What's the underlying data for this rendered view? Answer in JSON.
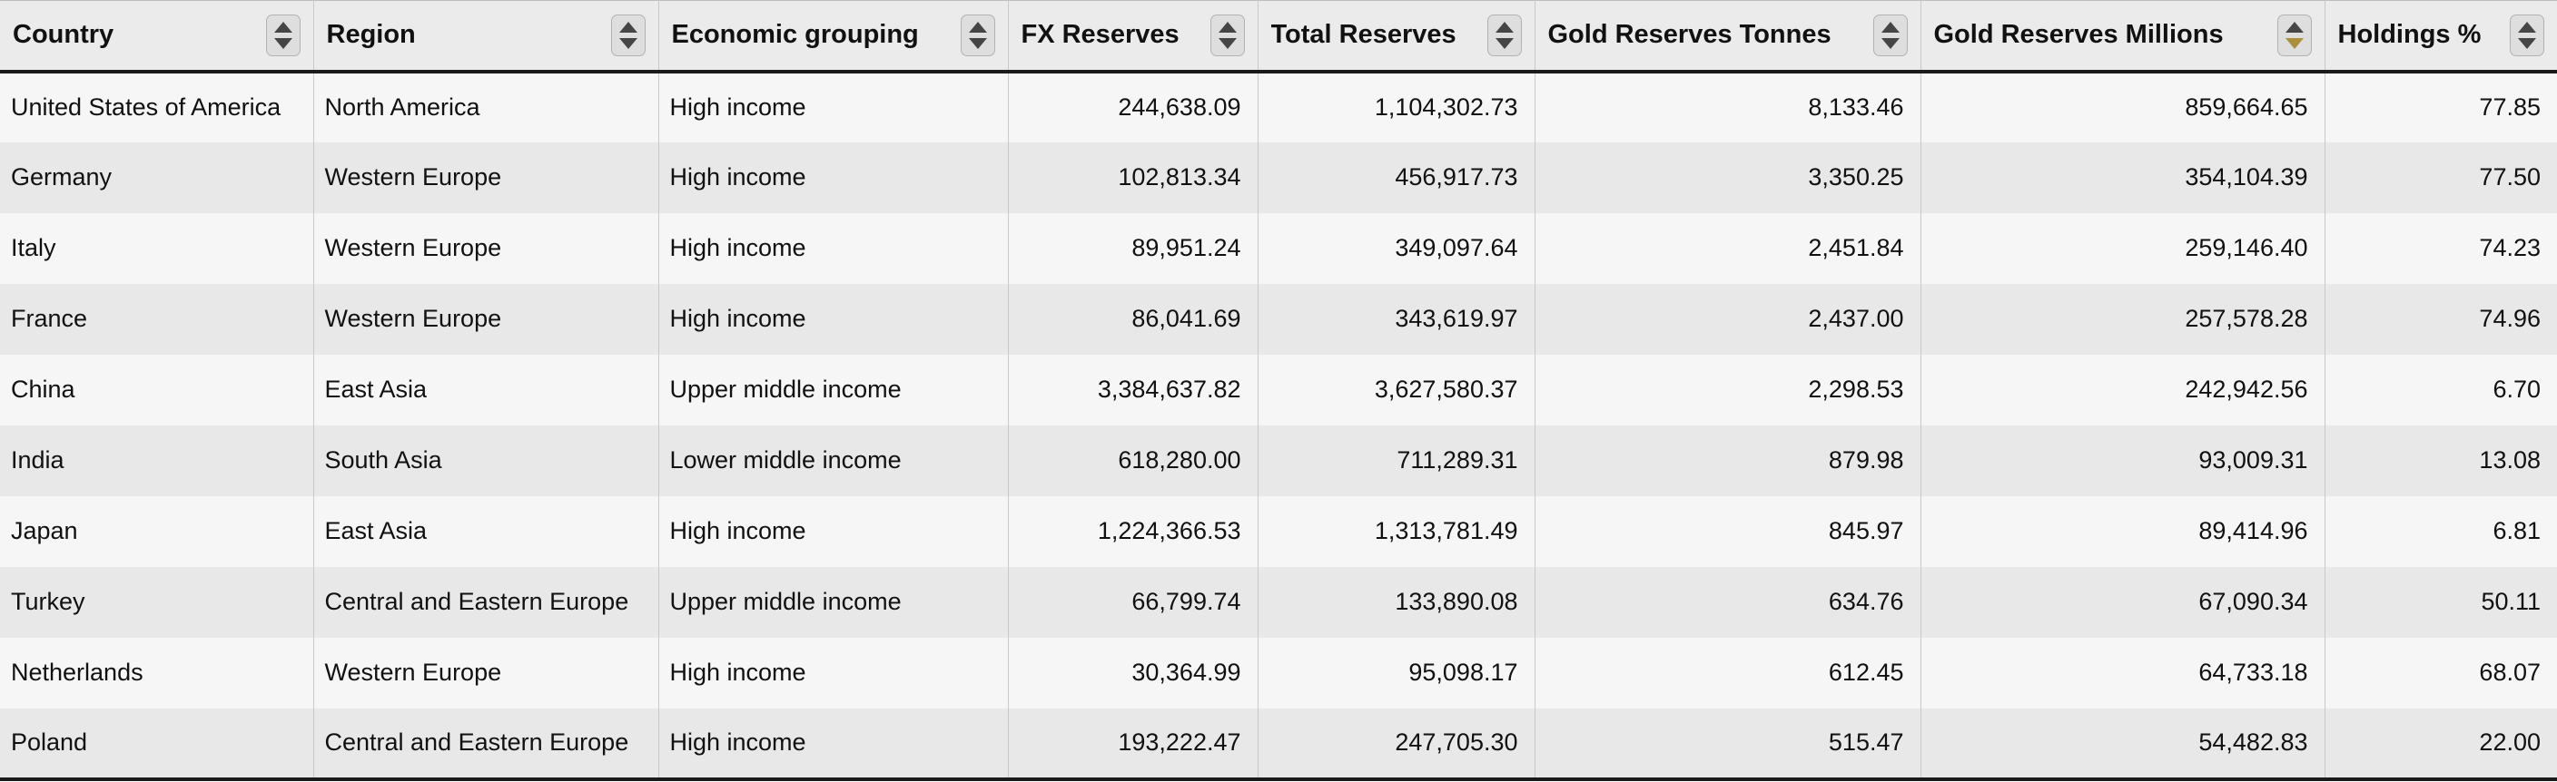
{
  "colors": {
    "header_bg": "#ebebeb",
    "row_odd_bg": "#f6f6f6",
    "row_even_bg": "#e8e8e8",
    "active_sort_arrow": "#a98f3e",
    "border_dark": "#1a1a1a",
    "border_light": "#c8c8c8"
  },
  "table": {
    "columns": [
      {
        "label": "Country",
        "align": "left",
        "sort": null
      },
      {
        "label": "Region",
        "align": "left",
        "sort": null
      },
      {
        "label": "Economic grouping",
        "align": "left",
        "sort": null
      },
      {
        "label": "FX Reserves",
        "align": "right",
        "sort": null
      },
      {
        "label": "Total Reserves",
        "align": "right",
        "sort": null
      },
      {
        "label": "Gold Reserves Tonnes",
        "align": "right",
        "sort": null
      },
      {
        "label": "Gold Reserves Millions",
        "align": "right",
        "sort": "desc"
      },
      {
        "label": "Holdings %",
        "align": "right",
        "sort": null
      }
    ],
    "rows": [
      [
        "United States of America",
        "North America",
        "High income",
        "244,638.09",
        "1,104,302.73",
        "8,133.46",
        "859,664.65",
        "77.85"
      ],
      [
        "Germany",
        "Western Europe",
        "High income",
        "102,813.34",
        "456,917.73",
        "3,350.25",
        "354,104.39",
        "77.50"
      ],
      [
        "Italy",
        "Western Europe",
        "High income",
        "89,951.24",
        "349,097.64",
        "2,451.84",
        "259,146.40",
        "74.23"
      ],
      [
        "France",
        "Western Europe",
        "High income",
        "86,041.69",
        "343,619.97",
        "2,437.00",
        "257,578.28",
        "74.96"
      ],
      [
        "China",
        "East Asia",
        "Upper middle income",
        "3,384,637.82",
        "3,627,580.37",
        "2,298.53",
        "242,942.56",
        "6.70"
      ],
      [
        "India",
        "South Asia",
        "Lower middle income",
        "618,280.00",
        "711,289.31",
        "879.98",
        "93,009.31",
        "13.08"
      ],
      [
        "Japan",
        "East Asia",
        "High income",
        "1,224,366.53",
        "1,313,781.49",
        "845.97",
        "89,414.96",
        "6.81"
      ],
      [
        "Turkey",
        "Central and Eastern Europe",
        "Upper middle income",
        "66,799.74",
        "133,890.08",
        "634.76",
        "67,090.34",
        "50.11"
      ],
      [
        "Netherlands",
        "Western Europe",
        "High income",
        "30,364.99",
        "95,098.17",
        "612.45",
        "64,733.18",
        "68.07"
      ],
      [
        "Poland",
        "Central and Eastern Europe",
        "High income",
        "193,222.47",
        "247,705.30",
        "515.47",
        "54,482.83",
        "22.00"
      ]
    ]
  }
}
